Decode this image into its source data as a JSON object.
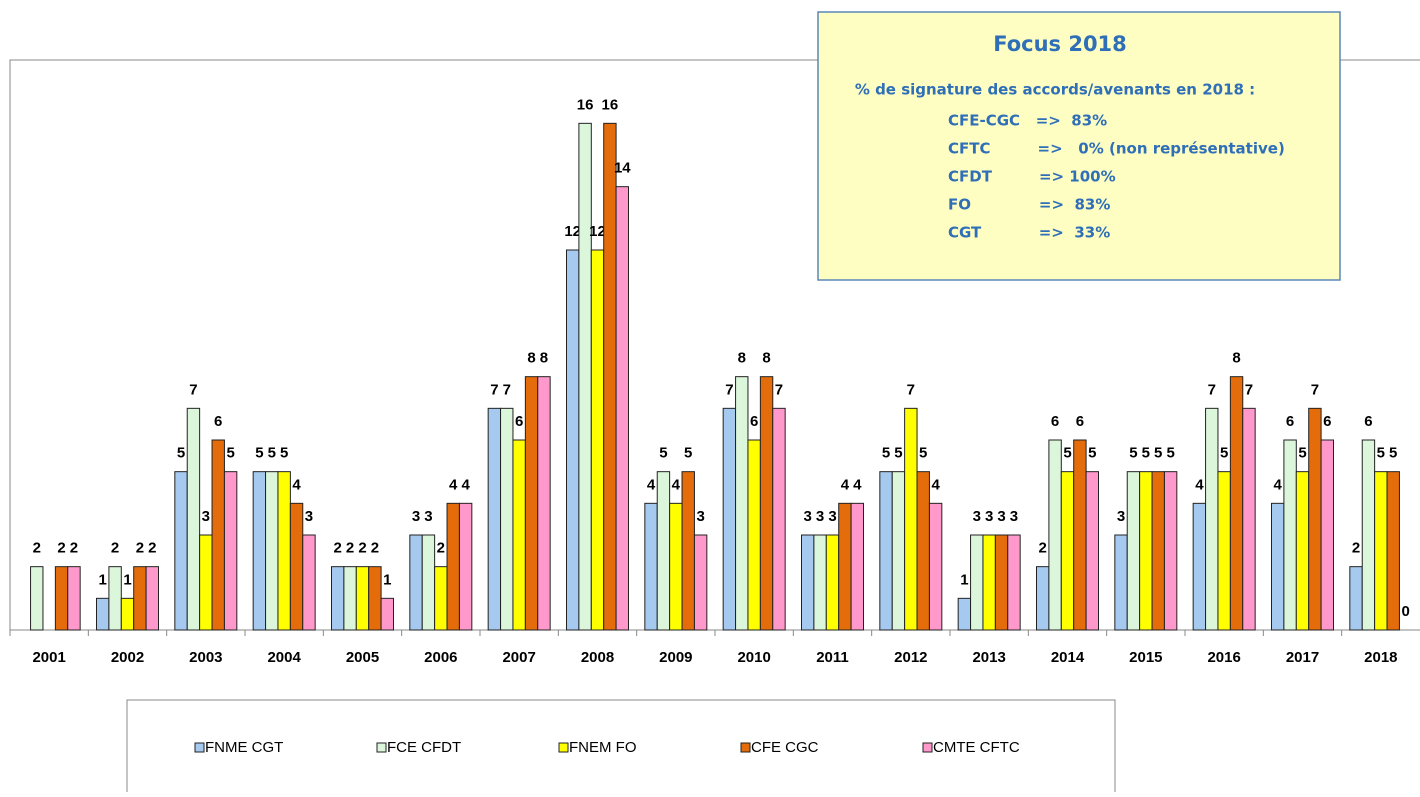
{
  "chart_data": {
    "type": "bar",
    "categories": [
      "2001",
      "2002",
      "2003",
      "2004",
      "2005",
      "2006",
      "2007",
      "2008",
      "2009",
      "2010",
      "2011",
      "2012",
      "2013",
      "2014",
      "2015",
      "2016",
      "2017",
      "2018"
    ],
    "series": [
      {
        "name": "FNME CGT",
        "color": "#a6c9ef",
        "values": [
          null,
          1,
          5,
          5,
          2,
          3,
          7,
          12,
          4,
          7,
          3,
          5,
          1,
          2,
          3,
          4,
          4,
          2
        ]
      },
      {
        "name": "FCE CFDT",
        "color": "#dcf6dc",
        "values": [
          2,
          2,
          7,
          5,
          2,
          3,
          7,
          16,
          5,
          8,
          3,
          5,
          3,
          6,
          5,
          7,
          6,
          6
        ]
      },
      {
        "name": "FNEM FO",
        "color": "#ffff00",
        "values": [
          null,
          1,
          3,
          5,
          2,
          2,
          6,
          12,
          4,
          6,
          3,
          7,
          3,
          5,
          5,
          5,
          5,
          5
        ]
      },
      {
        "name": "CFE CGC",
        "color": "#e46c0a",
        "values": [
          2,
          2,
          6,
          4,
          2,
          4,
          8,
          16,
          5,
          8,
          4,
          5,
          3,
          6,
          5,
          8,
          7,
          5
        ]
      },
      {
        "name": "CMTE CFTC",
        "color": "#ff99cc",
        "values": [
          2,
          2,
          5,
          3,
          1,
          4,
          8,
          14,
          3,
          7,
          4,
          4,
          3,
          5,
          5,
          7,
          6,
          0
        ]
      }
    ],
    "ylim": [
      0,
      18
    ],
    "annotation": {
      "title": "Focus 2018",
      "subtitle": "% de signature des accords/avenants en 2018 :",
      "lines": [
        "CFE-CGC   =>  83%",
        "CFTC         =>   0% (non représentative)",
        "CFDT         => 100%",
        "FO             =>  83%",
        "CGT           =>  33%"
      ]
    }
  }
}
